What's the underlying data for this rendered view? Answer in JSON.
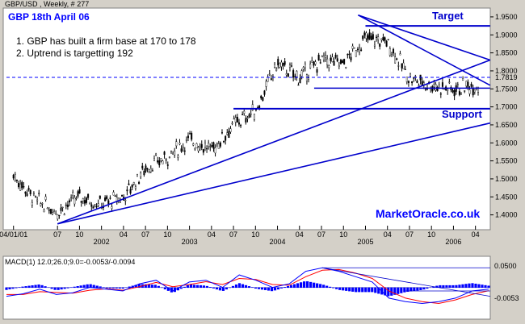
{
  "header": {
    "window_title": "GBP/USD , Weekly, # 277",
    "chart_title": "GBP 18th April 06"
  },
  "notes": [
    "1. GBP has built a firm base at 170 to 178",
    "2. Uptrend is targetting 192"
  ],
  "labels": {
    "target": "Target",
    "support": "Support",
    "watermark": "MarketOracle.co.uk"
  },
  "price_axis": {
    "ticks": [
      "1.9500",
      "1.9000",
      "1.8500",
      "1.8000",
      "1.7500",
      "1.7000",
      "1.6500",
      "1.6000",
      "1.5500",
      "1.5000",
      "1.4500",
      "1.4000"
    ],
    "current": "1.7819"
  },
  "time_axis": {
    "month_labels": [
      "04/01/01",
      "07",
      "10",
      "2002",
      "04",
      "07",
      "10",
      "2003",
      "04",
      "07",
      "10",
      "2004",
      "04",
      "07",
      "10",
      "2005",
      "04",
      "07",
      "10",
      "2006",
      "04"
    ]
  },
  "macd": {
    "header": "MACD(1) 12.0;26.0;9.0=-0.0053/-0.0094",
    "ticks": [
      "0.0500",
      "-0.0053"
    ]
  },
  "colors": {
    "background": "#d4d0c8",
    "panel": "#ffffff",
    "candle": "#000000",
    "trendline": "#0000cc",
    "title_text": "#0000ff",
    "macd_line": "#0000ff",
    "signal_line": "#ff0000",
    "histogram": "#0000ff",
    "current_price_line": "#0000ff"
  },
  "chart_data": [
    {
      "type": "candlestick",
      "title": "GBP 18th April 06",
      "series_name": "GBP/USD Weekly",
      "ylim": [
        1.37,
        1.97
      ],
      "x": [
        "2001-01-04",
        "2001-04",
        "2001-07",
        "2001-10",
        "2002-01",
        "2002-04",
        "2002-07",
        "2002-10",
        "2003-01",
        "2003-04",
        "2003-07",
        "2003-10",
        "2004-01",
        "2004-04",
        "2004-07",
        "2004-10",
        "2005-01",
        "2005-04",
        "2005-07",
        "2005-10",
        "2006-01",
        "2006-04"
      ],
      "close": [
        1.51,
        1.44,
        1.41,
        1.45,
        1.43,
        1.45,
        1.53,
        1.56,
        1.61,
        1.58,
        1.65,
        1.69,
        1.82,
        1.78,
        1.83,
        1.82,
        1.89,
        1.88,
        1.78,
        1.76,
        1.75,
        1.76
      ],
      "current_price": 1.7819,
      "grid": false,
      "trendlines": [
        {
          "name": "Target",
          "from": [
            "2005-01",
            1.925
          ],
          "to": [
            "2006-06",
            1.925
          ]
        },
        {
          "name": "Support",
          "from": [
            "2003-07",
            1.695
          ],
          "to": [
            "2006-06",
            1.695
          ]
        },
        {
          "from": [
            "2004-06",
            1.752
          ],
          "to": [
            "2006-06",
            1.752
          ]
        },
        {
          "from": [
            "2001-07",
            1.375
          ],
          "to": [
            "2006-06",
            1.83
          ]
        },
        {
          "from": [
            "2001-07",
            1.375
          ],
          "to": [
            "2006-06",
            1.655
          ]
        },
        {
          "from": [
            "2004-12",
            1.955
          ],
          "to": [
            "2006-06",
            1.76
          ]
        },
        {
          "from": [
            "2004-12",
            1.955
          ],
          "to": [
            "2006-06",
            1.83
          ]
        }
      ]
    },
    {
      "type": "line",
      "title": "MACD(1) 12.0;26.0;9.0=-0.0053/-0.0094",
      "ylim": [
        -0.08,
        0.06
      ],
      "series": [
        {
          "name": "MACD",
          "value": -0.0053
        },
        {
          "name": "Signal",
          "value": -0.0094
        }
      ],
      "macd_points": [
        -0.025,
        -0.018,
        -0.005,
        -0.02,
        -0.015,
        0.0,
        -0.005,
        -0.01,
        0.01,
        0.02,
        -0.01,
        0.015,
        0.02,
        0.0,
        0.035,
        0.02,
        0.0,
        0.01,
        0.045,
        0.055,
        0.045,
        0.03,
        0.015,
        -0.03,
        -0.04,
        -0.045,
        -0.04,
        -0.03,
        -0.01,
        -0.005
      ],
      "signal_points": [
        -0.02,
        -0.02,
        -0.012,
        -0.014,
        -0.016,
        -0.008,
        -0.004,
        -0.008,
        0.002,
        0.014,
        0.002,
        0.008,
        0.016,
        0.008,
        0.025,
        0.022,
        0.008,
        0.006,
        0.03,
        0.048,
        0.05,
        0.04,
        0.025,
        -0.01,
        -0.03,
        -0.04,
        -0.045,
        -0.035,
        -0.02,
        -0.009
      ]
    }
  ]
}
